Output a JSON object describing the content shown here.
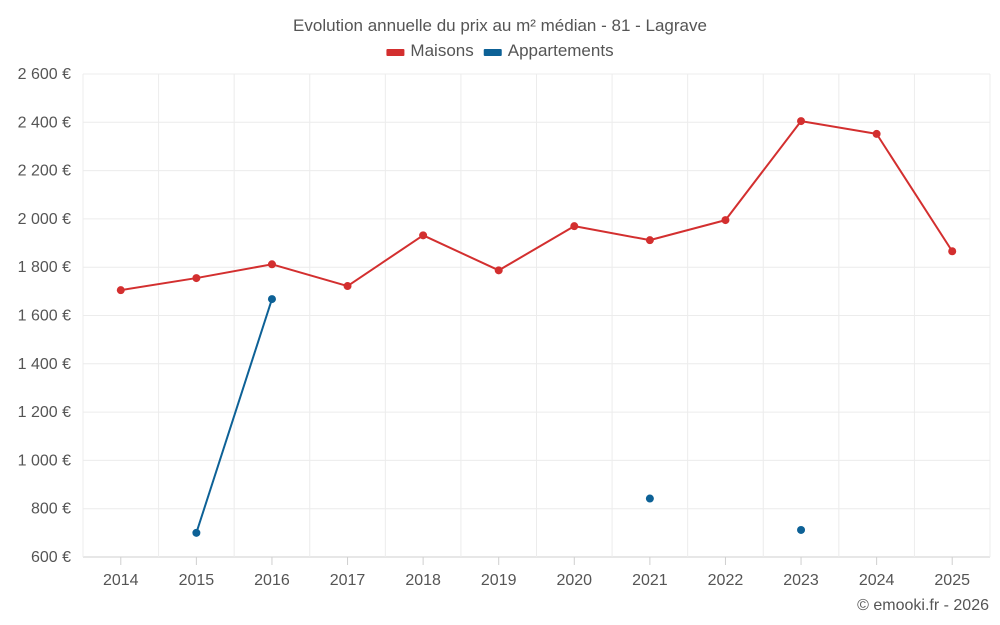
{
  "chart_data": {
    "type": "line",
    "title": "Evolution annuelle du prix au m² médian - 81 - Lagrave",
    "categories": [
      "2014",
      "2015",
      "2016",
      "2017",
      "2018",
      "2019",
      "2020",
      "2021",
      "2022",
      "2023",
      "2024",
      "2025"
    ],
    "y_ticks": [
      600,
      800,
      1000,
      1200,
      1400,
      1600,
      1800,
      2000,
      2200,
      2400,
      2600
    ],
    "y_tick_labels": [
      "600 €",
      "800 €",
      "1 000 €",
      "1 200 €",
      "1 400 €",
      "1 600 €",
      "1 800 €",
      "2 000 €",
      "2 200 €",
      "2 400 €",
      "2 600 €"
    ],
    "ylim": [
      600,
      2600
    ],
    "grid": true,
    "legend_position": "top-center",
    "series": [
      {
        "name": "Maisons",
        "color": "#d32f2f",
        "values": [
          1705,
          1755,
          1812,
          1722,
          1932,
          1787,
          1970,
          1912,
          1995,
          2405,
          2352,
          1866
        ]
      },
      {
        "name": "Appartements",
        "color": "#0d6196",
        "values": [
          null,
          700,
          1668,
          null,
          null,
          null,
          null,
          842,
          null,
          712,
          null,
          null
        ]
      }
    ],
    "credit": "© emooki.fr - 2026"
  }
}
